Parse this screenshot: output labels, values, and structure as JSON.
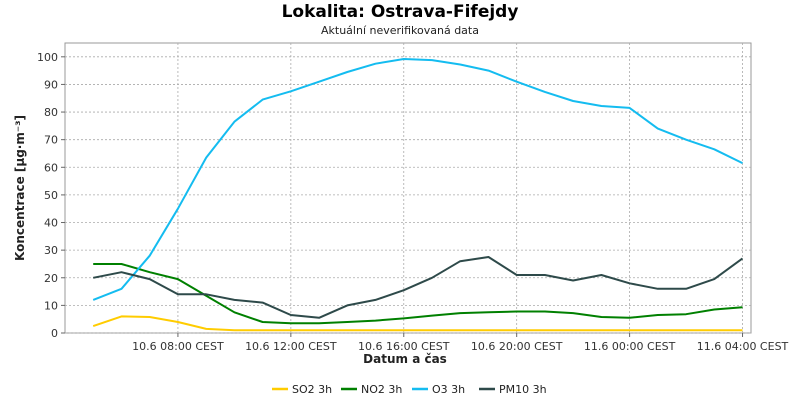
{
  "chart_data": {
    "type": "line",
    "title": "Lokalita: Ostrava-Fifejdy",
    "subtitle": "Aktuální neverifikovaná data",
    "xlabel": "Datum a čas",
    "ylabel": "Koncentrace [µg·m⁻³]",
    "ylim": [
      0,
      105
    ],
    "yticks": [
      0,
      10,
      20,
      30,
      40,
      50,
      60,
      70,
      80,
      90,
      100
    ],
    "x_tick_labels": [
      "10.6 08:00 CEST",
      "10.6 12:00 CEST",
      "10.6 16:00 CEST",
      "10.6 20:00 CEST",
      "11.6 00:00 CEST",
      "11.6 04:00 CEST"
    ],
    "x_tick_positions": [
      3,
      7,
      11,
      15,
      19,
      23
    ],
    "x_range": [
      -1,
      23.3
    ],
    "grid": true,
    "legend_position": "bottom",
    "series": [
      {
        "name": "SO2 3h",
        "color": "#ffcc00",
        "values": [
          2.5,
          6,
          5.8,
          4,
          1.5,
          1,
          1,
          1,
          1,
          1,
          1,
          1,
          1,
          1,
          1,
          1,
          1,
          1,
          1,
          1,
          1,
          1,
          1,
          1
        ]
      },
      {
        "name": "NO2 3h",
        "color": "#008000",
        "values": [
          25,
          25,
          22,
          19.5,
          13.5,
          7.5,
          4,
          3.5,
          3.5,
          4,
          4.5,
          5.3,
          6.3,
          7.2,
          7.5,
          7.8,
          7.8,
          7.2,
          5.8,
          5.5,
          6.5,
          6.8,
          8.5,
          9.3
        ]
      },
      {
        "name": "O3 3h",
        "color": "#14bcf0",
        "values": [
          12,
          16,
          28,
          45,
          63.5,
          76.5,
          84.5,
          87.5,
          91,
          94.5,
          97.5,
          99.2,
          98.8,
          97.2,
          95,
          91,
          87.3,
          84,
          82.2,
          81.5,
          74,
          70,
          66.5,
          61.5
        ]
      },
      {
        "name": "PM10 3h",
        "color": "#2e4a4a",
        "values": [
          20,
          22,
          19.5,
          14,
          14,
          12,
          11,
          6.5,
          5.5,
          10,
          12,
          15.5,
          20,
          26,
          27.5,
          21,
          21,
          19,
          21,
          18,
          16,
          16,
          19.5,
          27
        ]
      }
    ]
  }
}
